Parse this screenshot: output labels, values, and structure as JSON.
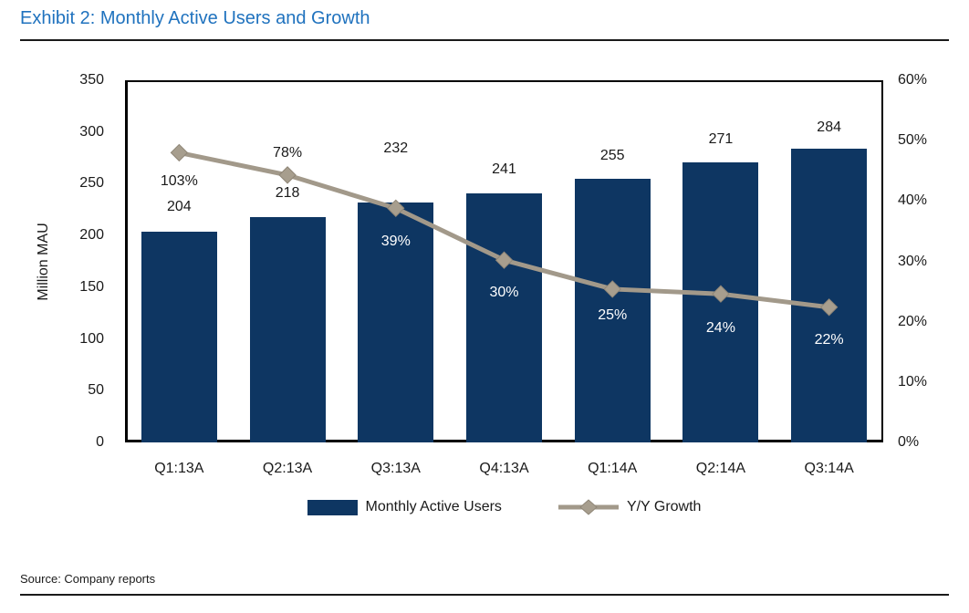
{
  "header": {
    "title": "Exhibit 2: Monthly Active Users and Growth"
  },
  "footer": {
    "source": "Source: Company reports"
  },
  "colors": {
    "title_blue": "#1F72BE",
    "bar_navy": "#0E3662",
    "line_tan": "#A2998A",
    "marker_tan": "#A79E8E",
    "text": "#1a1a1a",
    "inside_label_white": "#ffffff"
  },
  "chart_data": {
    "type": "bar",
    "subtype": "combo-bar-line-dual-axis",
    "categories": [
      "Q1:13A",
      "Q2:13A",
      "Q3:13A",
      "Q4:13A",
      "Q1:14A",
      "Q2:14A",
      "Q3:14A"
    ],
    "series": [
      {
        "name": "Monthly Active Users",
        "type": "bar",
        "axis": "left",
        "values": [
          204,
          218,
          232,
          241,
          255,
          271,
          284
        ],
        "labels": [
          "204",
          "218",
          "232",
          "241",
          "255",
          "271",
          "284"
        ],
        "color": "#0E3662"
      },
      {
        "name": "Y/Y Growth",
        "type": "line",
        "axis": "right",
        "values": [
          103,
          78,
          39,
          30,
          25,
          24,
          22
        ],
        "labels": [
          "103%",
          "78%",
          "39%",
          "30%",
          "25%",
          "24%",
          "22%"
        ],
        "plotted_pct": [
          48,
          44.3,
          38.8,
          30.2,
          25.4,
          24.6,
          22.4
        ],
        "color": "#A2998A"
      }
    ],
    "left_axis": {
      "label": "Million MAU",
      "min": 0,
      "max": 350,
      "step": 50
    },
    "right_axis": {
      "min": 0,
      "max": 60,
      "step": 10,
      "suffix": "%"
    },
    "legend": [
      "Monthly Active Users",
      "Y/Y Growth"
    ],
    "legend_position": "bottom",
    "grid": "off"
  }
}
